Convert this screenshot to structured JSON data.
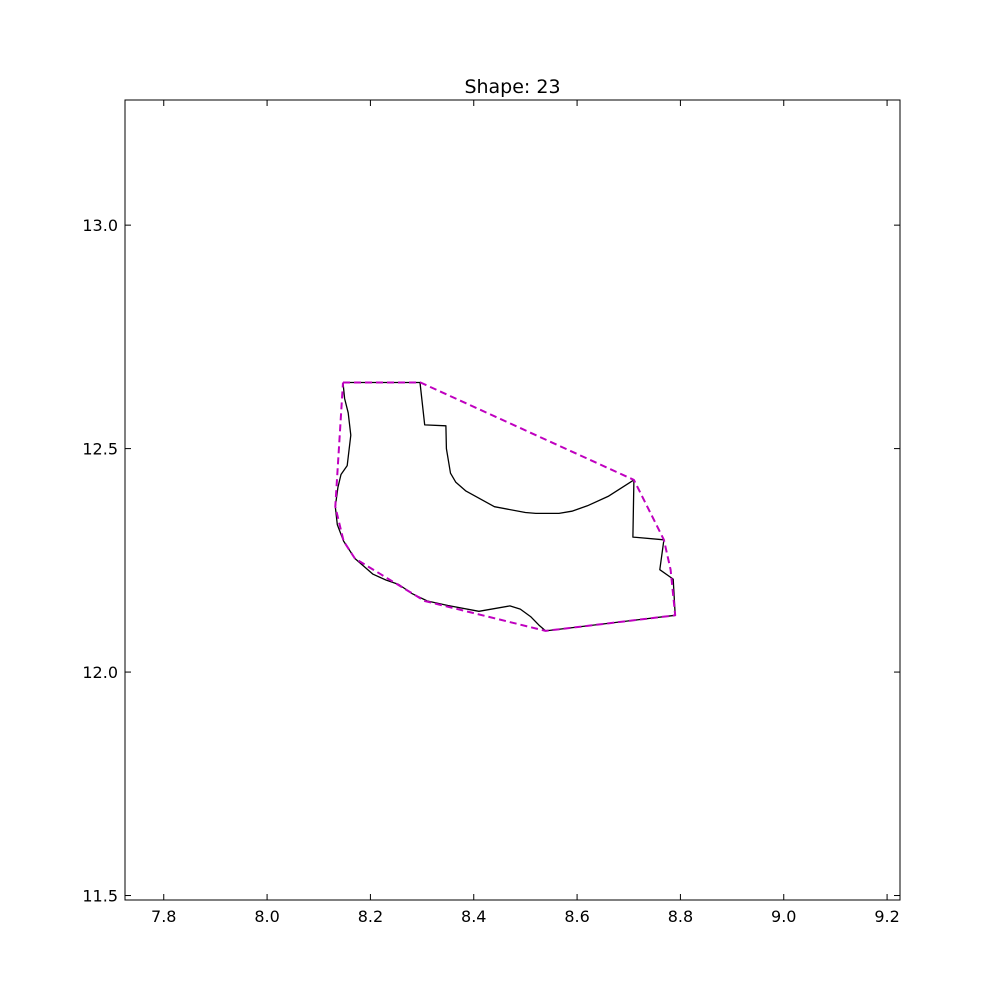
{
  "chart_data": {
    "type": "line",
    "title": "Shape: 23",
    "xlabel": "",
    "ylabel": "",
    "xlim": [
      7.725,
      9.225
    ],
    "ylim": [
      11.49,
      13.28
    ],
    "xticks": [
      "7.8",
      "8.0",
      "8.2",
      "8.4",
      "8.6",
      "8.8",
      "9.0",
      "9.2"
    ],
    "yticks": [
      "11.5",
      "12.0",
      "12.5",
      "13.0"
    ],
    "grid": false,
    "series": [
      {
        "style": "solid",
        "color": "#000000",
        "x": [
          8.147,
          8.296,
          8.305,
          8.346,
          8.347,
          8.355,
          8.365,
          8.385,
          8.44,
          8.5,
          8.52,
          8.545,
          8.565,
          8.59,
          8.62,
          8.66,
          8.71,
          8.708,
          8.768,
          8.76,
          8.786,
          8.79,
          8.539,
          8.526,
          8.51,
          8.49,
          8.47,
          8.41,
          8.35,
          8.31,
          8.28,
          8.255,
          8.23,
          8.205,
          8.17,
          8.148,
          8.136,
          8.132,
          8.137,
          8.143,
          8.155,
          8.162,
          8.157,
          8.15,
          8.147
        ],
        "y": [
          12.648,
          12.648,
          12.553,
          12.551,
          12.5,
          12.445,
          12.425,
          12.405,
          12.37,
          12.357,
          12.355,
          12.355,
          12.355,
          12.36,
          12.372,
          12.393,
          12.43,
          12.302,
          12.296,
          12.229,
          12.208,
          12.127,
          12.092,
          12.105,
          12.124,
          12.141,
          12.148,
          12.136,
          12.149,
          12.159,
          12.176,
          12.196,
          12.206,
          12.219,
          12.254,
          12.293,
          12.33,
          12.37,
          12.413,
          12.442,
          12.462,
          12.53,
          12.58,
          12.612,
          12.648
        ]
      },
      {
        "style": "dashed",
        "color": "#bf00bf",
        "x": [
          8.147,
          8.297,
          8.71,
          8.768,
          8.781,
          8.79,
          8.539,
          8.305,
          8.17,
          8.148,
          8.132,
          8.147
        ],
        "y": [
          12.648,
          12.648,
          12.43,
          12.296,
          12.229,
          12.127,
          12.092,
          12.159,
          12.254,
          12.293,
          12.37,
          12.648
        ]
      }
    ]
  }
}
